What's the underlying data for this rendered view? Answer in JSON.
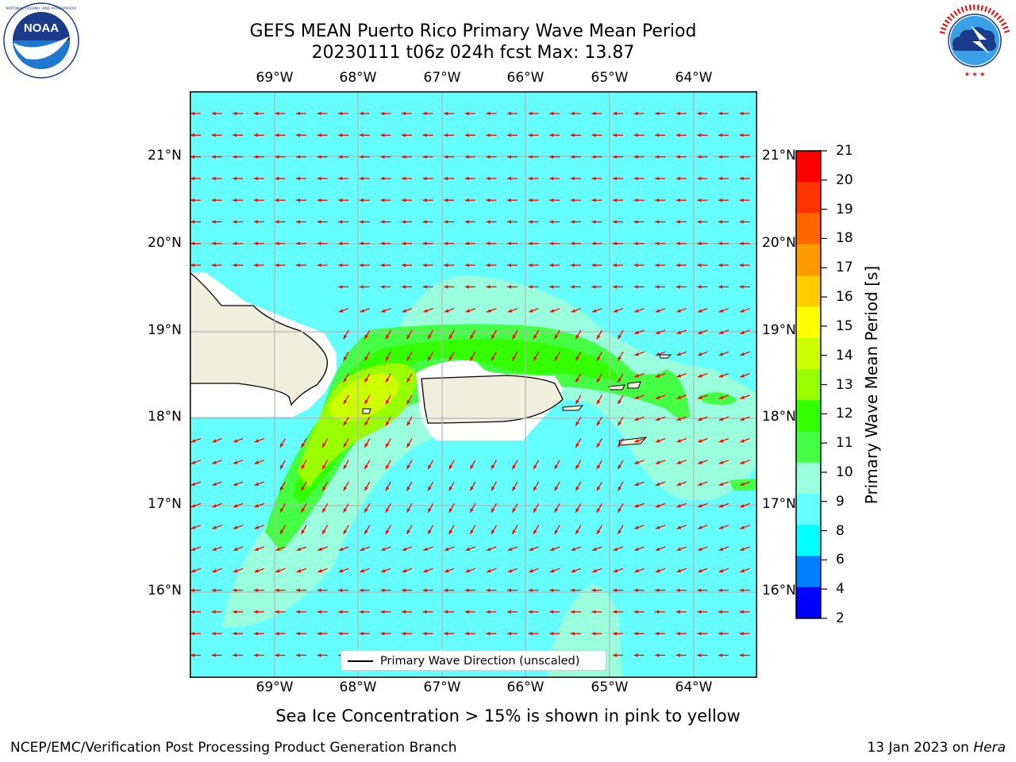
{
  "title": {
    "line1": "GEFS MEAN Puerto Rico Primary Wave Mean Period",
    "line2": "20230111 t06z 024h fcst   Max: 13.87"
  },
  "logos": {
    "left": {
      "text": "NOAA",
      "icon": "noaa-logo",
      "ring_text": "NATIONAL OCEANIC AND ATMOSPHERIC ADMINISTRATION · U.S. DEPARTMENT OF COMMERCE"
    },
    "right": {
      "icon": "nws-logo",
      "ring_text": "NATIONAL WEATHER SERVICE"
    }
  },
  "map": {
    "lon_labels": [
      "69°W",
      "68°W",
      "67°W",
      "66°W",
      "65°W",
      "64°W"
    ],
    "lat_labels": [
      "21°N",
      "20°N",
      "19°N",
      "18°N",
      "17°N",
      "16°N"
    ],
    "ocean_color": "#66ffff",
    "land_color": "#f0eedd",
    "arrow_color": "#ff0000",
    "legend_label": "Primary Wave Direction (unscaled)"
  },
  "colorbar": {
    "title": "Primary Wave Mean Period [s]",
    "ticks": [
      "21",
      "20",
      "19",
      "18",
      "17",
      "16",
      "15",
      "14",
      "13",
      "12",
      "11",
      "10",
      "9",
      "8",
      "6",
      "4",
      "2"
    ],
    "colors": [
      "#ff0000",
      "#ff3300",
      "#ff6600",
      "#ff9900",
      "#ffcc00",
      "#ffff00",
      "#ccff00",
      "#99ff00",
      "#33ff00",
      "#44ff44",
      "#99ffdd",
      "#66ffff",
      "#00ffff",
      "#0080ff",
      "#0000ff"
    ]
  },
  "footnote": "Sea Ice Concentration > 15% is shown in pink to yellow",
  "credit": "NCEP/EMC/Verification Post Processing Product Generation Branch",
  "datestamp": {
    "text": "13 Jan 2023 on ",
    "host": "Hera"
  }
}
